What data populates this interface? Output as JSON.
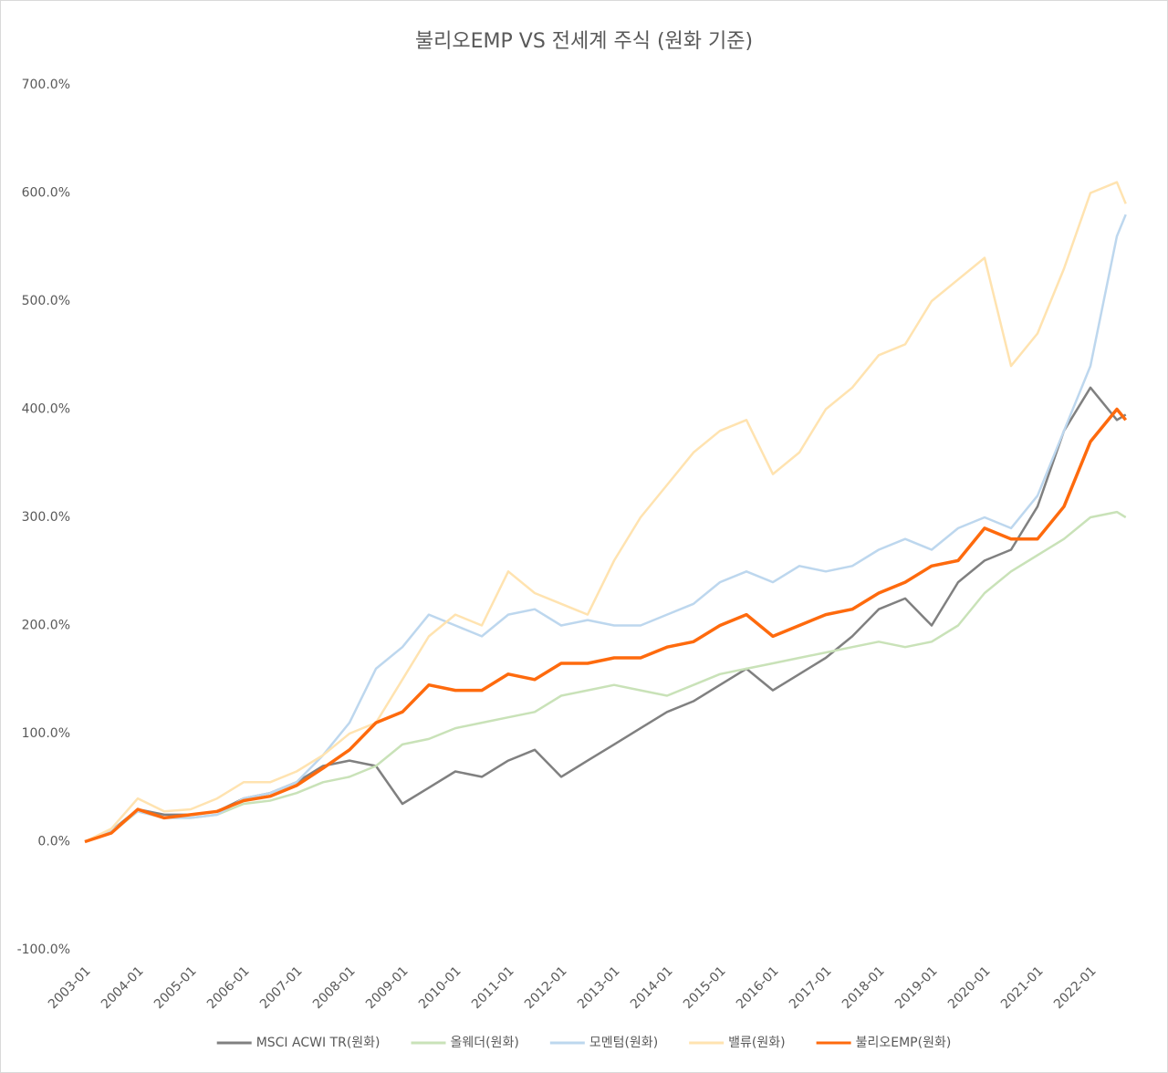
{
  "chart_data": {
    "type": "line",
    "title": "불리오EMP VS 전세계 주식 (원화 기준)",
    "x": [
      "2003-01",
      "2003-07",
      "2004-01",
      "2004-07",
      "2005-01",
      "2005-07",
      "2006-01",
      "2006-07",
      "2007-01",
      "2007-07",
      "2008-01",
      "2008-07",
      "2009-01",
      "2009-07",
      "2010-01",
      "2010-07",
      "2011-01",
      "2011-07",
      "2012-01",
      "2012-07",
      "2013-01",
      "2013-07",
      "2014-01",
      "2014-07",
      "2015-01",
      "2015-07",
      "2016-01",
      "2016-07",
      "2017-01",
      "2017-07",
      "2018-01",
      "2018-07",
      "2019-01",
      "2019-07",
      "2020-01",
      "2020-07",
      "2021-01",
      "2021-07",
      "2022-01",
      "2022-07",
      "2022-09"
    ],
    "xticks": [
      "2003-01",
      "2004-01",
      "2005-01",
      "2006-01",
      "2007-01",
      "2008-01",
      "2009-01",
      "2010-01",
      "2011-01",
      "2012-01",
      "2013-01",
      "2014-01",
      "2015-01",
      "2016-01",
      "2017-01",
      "2018-01",
      "2019-01",
      "2020-01",
      "2021-01",
      "2022-01"
    ],
    "ylim": [
      -100,
      700
    ],
    "yticks": [
      {
        "value": -100,
        "label": "-100.0%"
      },
      {
        "value": 0,
        "label": "0.0%"
      },
      {
        "value": 100,
        "label": "100.0%"
      },
      {
        "value": 200,
        "label": "200.0%"
      },
      {
        "value": 300,
        "label": "300.0%"
      },
      {
        "value": 400,
        "label": "400.0%"
      },
      {
        "value": 500,
        "label": "500.0%"
      },
      {
        "value": 600,
        "label": "600.0%"
      },
      {
        "value": 700,
        "label": "700.0%"
      }
    ],
    "grid": false,
    "legend": "bottom",
    "series": [
      {
        "name": "MSCI ACWI TR(원화)",
        "color": "#808080",
        "values": [
          0,
          10,
          30,
          25,
          25,
          28,
          40,
          45,
          55,
          70,
          75,
          70,
          35,
          50,
          65,
          60,
          75,
          85,
          60,
          75,
          90,
          105,
          120,
          130,
          145,
          160,
          140,
          155,
          170,
          190,
          215,
          225,
          200,
          240,
          260,
          270,
          310,
          380,
          420,
          390,
          395
        ]
      },
      {
        "name": "올웨더(원화)",
        "color": "#c9e2b8",
        "values": [
          0,
          8,
          28,
          22,
          22,
          25,
          35,
          38,
          45,
          55,
          60,
          70,
          90,
          95,
          105,
          110,
          115,
          120,
          135,
          140,
          145,
          140,
          135,
          145,
          155,
          160,
          165,
          170,
          175,
          180,
          185,
          180,
          185,
          200,
          230,
          250,
          265,
          280,
          300,
          305,
          300
        ]
      },
      {
        "name": "모멘텀(원화)",
        "color": "#bdd7ee",
        "values": [
          0,
          10,
          28,
          22,
          22,
          25,
          40,
          45,
          55,
          80,
          110,
          160,
          180,
          210,
          200,
          190,
          210,
          215,
          200,
          205,
          200,
          200,
          210,
          220,
          240,
          250,
          240,
          255,
          250,
          255,
          270,
          280,
          270,
          290,
          300,
          290,
          320,
          380,
          440,
          560,
          580
        ]
      },
      {
        "name": "밸류(원화)",
        "color": "#ffe3b0",
        "values": [
          0,
          12,
          40,
          28,
          30,
          40,
          55,
          55,
          65,
          80,
          100,
          110,
          150,
          190,
          210,
          200,
          250,
          230,
          220,
          210,
          260,
          300,
          330,
          360,
          380,
          390,
          340,
          360,
          400,
          420,
          450,
          460,
          500,
          520,
          540,
          440,
          470,
          530,
          600,
          610,
          590
        ]
      },
      {
        "name": "불리오EMP(원화)",
        "color": "#fe6a0d",
        "values": [
          0,
          8,
          30,
          22,
          25,
          28,
          38,
          42,
          52,
          68,
          85,
          110,
          120,
          145,
          140,
          140,
          155,
          150,
          165,
          165,
          170,
          170,
          180,
          185,
          200,
          210,
          190,
          200,
          210,
          215,
          230,
          240,
          255,
          260,
          290,
          280,
          280,
          310,
          370,
          400,
          390
        ]
      }
    ]
  }
}
